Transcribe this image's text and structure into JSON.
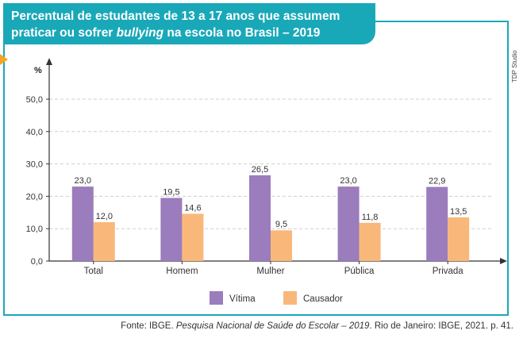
{
  "title": {
    "line1": "Percentual de estudantes de 13 a 17 anos que assumem",
    "line2_pre": "praticar ou sofrer ",
    "line2_italic": "bullying",
    "line2_post": " na escola no Brasil – 2019"
  },
  "credit": "TDP Studio",
  "source": {
    "pre": "Fonte: IBGE. ",
    "italic": "Pesquisa Nacional de Saúde do Escolar – 2019",
    "post": ". Rio de Janeiro: IBGE, 2021. p. 41."
  },
  "colors": {
    "accent": "#19a8b8",
    "marker": "#f5a623",
    "victim": "#9b7cbc",
    "aggressor": "#f9b87a"
  },
  "chart_data": {
    "type": "bar",
    "ylabel": "%",
    "ylim": [
      0,
      50
    ],
    "yticks": [
      0,
      10,
      20,
      30,
      40,
      50
    ],
    "ytick_labels": [
      "0,0",
      "10,0",
      "20,0",
      "30,0",
      "40,0",
      "50,0"
    ],
    "grid": true,
    "legend_position": "bottom",
    "categories": [
      "Total",
      "Homem",
      "Mulher",
      "Pública",
      "Privada"
    ],
    "series": [
      {
        "name": "Vítima",
        "values": [
          23.0,
          19.5,
          26.5,
          23.0,
          22.9
        ],
        "labels": [
          "23,0",
          "19,5",
          "26,5",
          "23,0",
          "22,9"
        ],
        "color": "#9b7cbc"
      },
      {
        "name": "Causador",
        "values": [
          12.0,
          14.6,
          9.5,
          11.8,
          13.5
        ],
        "labels": [
          "12,0",
          "14,6",
          "9,5",
          "11,8",
          "13,5"
        ],
        "color": "#f9b87a"
      }
    ]
  }
}
